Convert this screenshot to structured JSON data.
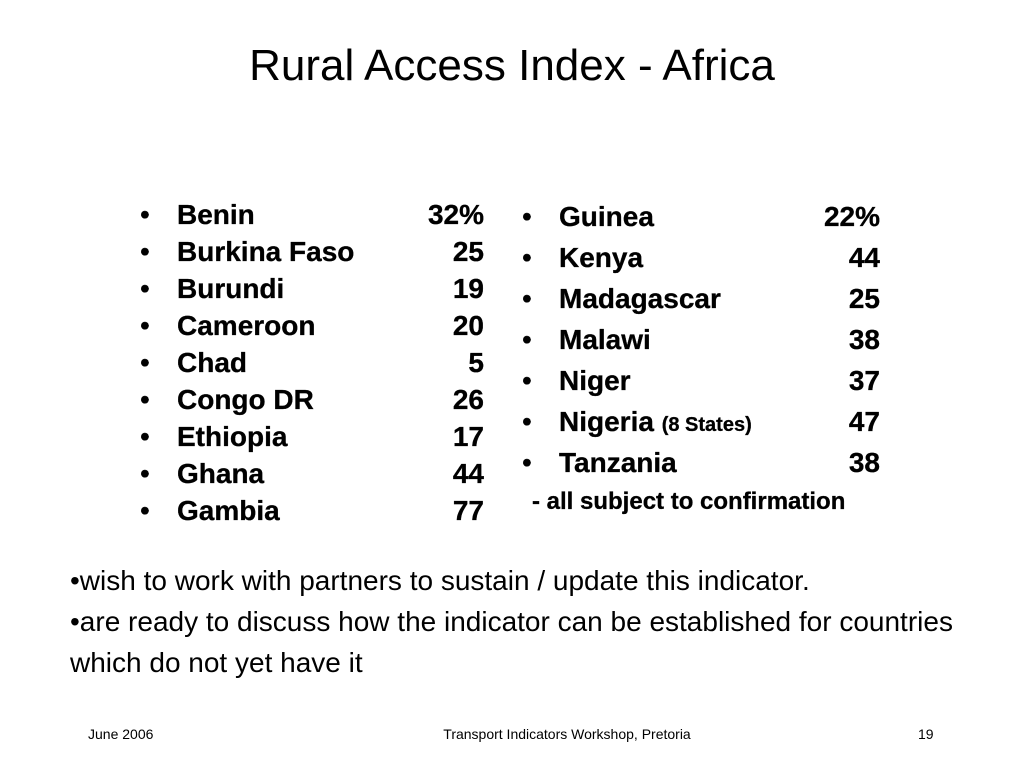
{
  "title": "Rural Access Index - Africa",
  "bullet_char": "•",
  "left_list": [
    {
      "country": "Benin",
      "value": "32%"
    },
    {
      "country": "Burkina Faso",
      "value": "25"
    },
    {
      "country": "Burundi",
      "value": "19"
    },
    {
      "country": "Cameroon",
      "value": "20"
    },
    {
      "country": "Chad",
      "value": "5"
    },
    {
      "country": "Congo DR",
      "value": "26"
    },
    {
      "country": "Ethiopia",
      "value": "17"
    },
    {
      "country": "Ghana",
      "value": "44"
    },
    {
      "country": "Gambia",
      "value": "77"
    }
  ],
  "right_list": [
    {
      "country": "Guinea",
      "value": "22%"
    },
    {
      "country": "Kenya",
      "value": "44"
    },
    {
      "country": "Madagascar",
      "value": "25"
    },
    {
      "country": "Malawi",
      "value": "38"
    },
    {
      "country": "Niger",
      "value": "37"
    },
    {
      "country": "Nigeria",
      "note": "(8 States)",
      "value": "47"
    },
    {
      "country": "Tanzania",
      "value": "38"
    }
  ],
  "confirmation_note": "- all subject to confirmation",
  "notes": [
    "•wish to work with partners to sustain / update this indicator.",
    "•are ready to discuss how the indicator can be established for countries which do not yet have it"
  ],
  "footer": {
    "date": "June 2006",
    "event": "Transport Indicators Workshop, Pretoria",
    "page_number": "19"
  }
}
